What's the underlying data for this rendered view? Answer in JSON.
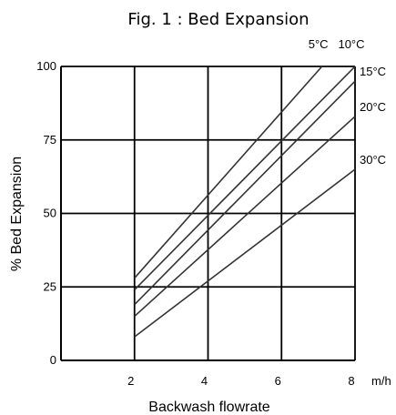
{
  "chart_data": {
    "type": "line",
    "title": "Fig. 1 : Bed Expansion",
    "xlabel": "Backwash flowrate",
    "ylabel": "% Bed Expansion",
    "x_unit": "m/h",
    "xlim": [
      0,
      8
    ],
    "ylim": [
      0,
      100
    ],
    "x_ticks": [
      "2",
      "4",
      "6",
      "8"
    ],
    "y_ticks": [
      "0",
      "25",
      "50",
      "75",
      "100"
    ],
    "grid": true,
    "series": [
      {
        "name": "5°C",
        "color": "#333333",
        "x": [
          2,
          7.1
        ],
        "y": [
          28,
          100
        ]
      },
      {
        "name": "10°C",
        "color": "#333333",
        "x": [
          2,
          8
        ],
        "y": [
          24,
          100
        ]
      },
      {
        "name": "15°C",
        "color": "#333333",
        "x": [
          2,
          8
        ],
        "y": [
          19,
          95
        ]
      },
      {
        "name": "20°C",
        "color": "#333333",
        "x": [
          2,
          8
        ],
        "y": [
          15,
          83
        ]
      },
      {
        "name": "30°C",
        "color": "#333333",
        "x": [
          2,
          8
        ],
        "y": [
          8,
          65
        ]
      }
    ]
  }
}
